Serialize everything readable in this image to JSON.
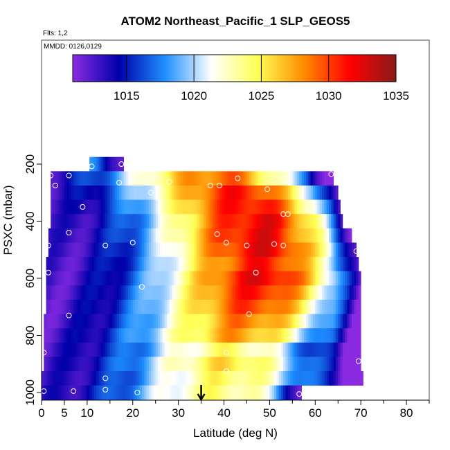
{
  "chart_data": {
    "type": "heatmap",
    "title": "ATOM2 Northeast_Pacific_1 SLP_GEOS5",
    "flights_note": "Flts: 1,2",
    "date_note": "MMDD: 0126,0129",
    "xlabel": "Latitude (deg N)",
    "ylabel": "PSXC (mbar)",
    "xlim": [
      0,
      85
    ],
    "ylim": [
      1000,
      100
    ],
    "x_ticks": [
      0,
      5,
      10,
      20,
      30,
      40,
      50,
      60,
      70,
      80
    ],
    "y_ticks": [
      200,
      400,
      600,
      800,
      1000
    ],
    "colorbar": {
      "range": [
        1011,
        1035
      ],
      "ticks": [
        1015,
        1020,
        1025,
        1030,
        1035
      ],
      "stops": [
        "#8a2be2",
        "#0000aa",
        "#1e90ff",
        "#ffffff",
        "#ffff55",
        "#ff8c00",
        "#ff0000",
        "#8b1a1a"
      ]
    },
    "arrow_marker_latitude": 35,
    "bands": [
      {
        "p": 200,
        "lat_min": 10.5,
        "lat_max": 18,
        "peak": 1017.5,
        "peak_lat": 17
      },
      {
        "p": 250,
        "lat_min": 2,
        "lat_max": 64,
        "peak": 1029,
        "peak_lat": 40
      },
      {
        "p": 300,
        "lat_min": 2,
        "lat_max": 65,
        "peak": 1031,
        "peak_lat": 44
      },
      {
        "p": 350,
        "lat_min": 2,
        "lat_max": 65.5,
        "peak": 1031.5,
        "peak_lat": 46
      },
      {
        "p": 400,
        "lat_min": 2,
        "lat_max": 66,
        "peak": 1032,
        "peak_lat": 48
      },
      {
        "p": 450,
        "lat_min": 1.5,
        "lat_max": 68,
        "peak": 1032,
        "peak_lat": 48
      },
      {
        "p": 500,
        "lat_min": 1.5,
        "lat_max": 69,
        "peak": 1032,
        "peak_lat": 49
      },
      {
        "p": 550,
        "lat_min": 1,
        "lat_max": 69.5,
        "peak": 1031,
        "peak_lat": 49
      },
      {
        "p": 600,
        "lat_min": 1,
        "lat_max": 70,
        "peak": 1032,
        "peak_lat": 49
      },
      {
        "p": 650,
        "lat_min": 1,
        "lat_max": 70,
        "peak": 1031,
        "peak_lat": 48
      },
      {
        "p": 700,
        "lat_min": 1,
        "lat_max": 70,
        "peak": 1030,
        "peak_lat": 47
      },
      {
        "p": 750,
        "lat_min": 0.5,
        "lat_max": 70,
        "peak": 1028.5,
        "peak_lat": 46
      },
      {
        "p": 800,
        "lat_min": 0.5,
        "lat_max": 70,
        "peak": 1027.5,
        "peak_lat": 44
      },
      {
        "p": 850,
        "lat_min": 0.5,
        "lat_max": 70,
        "peak": 1024,
        "peak_lat": 42
      },
      {
        "p": 900,
        "lat_min": 0.5,
        "lat_max": 70,
        "peak": 1025.5,
        "peak_lat": 42
      },
      {
        "p": 950,
        "lat_min": 0,
        "lat_max": 70.5,
        "peak": 1024.5,
        "peak_lat": 42
      },
      {
        "p": 1000,
        "lat_min": 0,
        "lat_max": 57,
        "peak": 1024,
        "peak_lat": 40
      }
    ],
    "points": [
      [
        11,
        208
      ],
      [
        17.5,
        200
      ],
      [
        2,
        240
      ],
      [
        6,
        240
      ],
      [
        3,
        275
      ],
      [
        9,
        350
      ],
      [
        6,
        440
      ],
      [
        1.5,
        485
      ],
      [
        14,
        485
      ],
      [
        20,
        475
      ],
      [
        1.5,
        580
      ],
      [
        22,
        630
      ],
      [
        6,
        730
      ],
      [
        0.5,
        860
      ],
      [
        14,
        950
      ],
      [
        14,
        990
      ],
      [
        7,
        995
      ],
      [
        0.5,
        995
      ],
      [
        21,
        1000
      ],
      [
        17,
        265
      ],
      [
        24,
        300
      ],
      [
        28,
        262
      ],
      [
        37,
        275
      ],
      [
        39,
        275
      ],
      [
        43,
        250
      ],
      [
        49.5,
        288
      ],
      [
        53,
        375
      ],
      [
        54,
        375
      ],
      [
        38.5,
        445
      ],
      [
        40.5,
        475
      ],
      [
        45,
        485
      ],
      [
        51,
        480
      ],
      [
        53,
        485
      ],
      [
        47,
        580
      ],
      [
        45.5,
        725
      ],
      [
        40.5,
        860
      ],
      [
        40.5,
        925
      ],
      [
        56.5,
        1005
      ],
      [
        63.5,
        235
      ],
      [
        69,
        505
      ],
      [
        69.5,
        890
      ],
      [
        69.5,
        995
      ]
    ]
  }
}
